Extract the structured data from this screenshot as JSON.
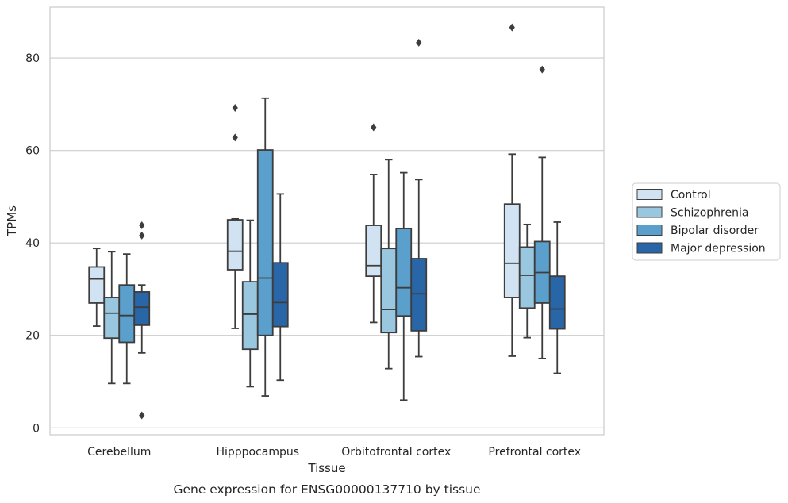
{
  "chart_data": {
    "type": "box",
    "title": "",
    "caption": "Gene expression for ENSG00000137710 by tissue",
    "xlabel": "Tissue",
    "ylabel": "TPMs",
    "ylim": [
      -1.5,
      91
    ],
    "yticks": [
      0,
      20,
      40,
      60,
      80
    ],
    "grid": "y",
    "legend_position": "right",
    "categories": [
      "Cerebellum",
      "Hipppocampus",
      "Orbitofrontal cortex",
      "Prefrontal cortex"
    ],
    "series": [
      {
        "name": "Control",
        "color": "#d1e2f2",
        "boxes": [
          {
            "whisker_low": 22,
            "q1": 27,
            "median": 32.2,
            "q3": 34.8,
            "whisker_high": 38.8,
            "outliers": []
          },
          {
            "whisker_low": 21.5,
            "q1": 34.2,
            "median": 38.2,
            "q3": 45,
            "whisker_high": 45.2,
            "outliers": [
              62.8,
              69.2
            ]
          },
          {
            "whisker_low": 22.8,
            "q1": 32.8,
            "median": 35.1,
            "q3": 43.8,
            "whisker_high": 54.8,
            "outliers": [
              65
            ]
          },
          {
            "whisker_low": 15.5,
            "q1": 28.2,
            "median": 35.6,
            "q3": 48.4,
            "whisker_high": 59.2,
            "outliers": [
              86.6
            ]
          }
        ]
      },
      {
        "name": "Schizophrenia",
        "color": "#9ac7e0",
        "boxes": [
          {
            "whisker_low": 9.6,
            "q1": 19.4,
            "median": 24.8,
            "q3": 28.2,
            "whisker_high": 38.1,
            "outliers": []
          },
          {
            "whisker_low": 8.9,
            "q1": 17,
            "median": 24.6,
            "q3": 31.6,
            "whisker_high": 44.9,
            "outliers": []
          },
          {
            "whisker_low": 12.8,
            "q1": 20.6,
            "median": 25.6,
            "q3": 38.8,
            "whisker_high": 58,
            "outliers": []
          },
          {
            "whisker_low": 19.5,
            "q1": 25.9,
            "median": 33,
            "q3": 39.1,
            "whisker_high": 44,
            "outliers": []
          }
        ]
      },
      {
        "name": "Bipolar disorder",
        "color": "#5b9fcc",
        "boxes": [
          {
            "whisker_low": 9.6,
            "q1": 18.5,
            "median": 24.3,
            "q3": 30.9,
            "whisker_high": 37.6,
            "outliers": []
          },
          {
            "whisker_low": 6.9,
            "q1": 20,
            "median": 32.4,
            "q3": 60.1,
            "whisker_high": 71.3,
            "outliers": []
          },
          {
            "whisker_low": 6,
            "q1": 24.2,
            "median": 30.3,
            "q3": 43.1,
            "whisker_high": 55.2,
            "outliers": []
          },
          {
            "whisker_low": 15,
            "q1": 27,
            "median": 33.6,
            "q3": 40.3,
            "whisker_high": 58.5,
            "outliers": [
              77.5
            ]
          }
        ]
      },
      {
        "name": "Major depression",
        "color": "#2966a8",
        "boxes": [
          {
            "whisker_low": 16.2,
            "q1": 22.2,
            "median": 26.1,
            "q3": 29.4,
            "whisker_high": 30.9,
            "outliers": [
              2.7,
              41.6,
              43.8
            ]
          },
          {
            "whisker_low": 10.3,
            "q1": 21.9,
            "median": 27.1,
            "q3": 35.7,
            "whisker_high": 50.6,
            "outliers": []
          },
          {
            "whisker_low": 15.4,
            "q1": 21,
            "median": 29,
            "q3": 36.6,
            "whisker_high": 53.7,
            "outliers": [
              83.3
            ]
          },
          {
            "whisker_low": 11.8,
            "q1": 21.4,
            "median": 25.7,
            "q3": 32.8,
            "whisker_high": 44.5,
            "outliers": []
          }
        ]
      }
    ]
  }
}
